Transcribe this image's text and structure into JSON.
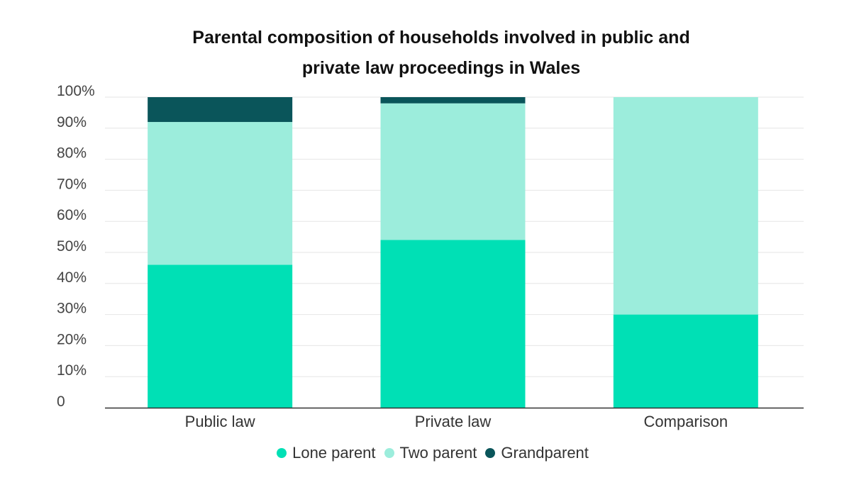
{
  "chart_data": {
    "type": "bar",
    "stacked": true,
    "title_lines": [
      "Parental composition of households involved in public and",
      "private law proceedings in Wales"
    ],
    "categories": [
      "Public law",
      "Private law",
      "Comparison"
    ],
    "series": [
      {
        "name": "Lone parent",
        "values": [
          46,
          54,
          30
        ],
        "color": "#00e0b5"
      },
      {
        "name": "Two parent",
        "values": [
          46,
          44,
          70
        ],
        "color": "#9ceddc"
      },
      {
        "name": "Grandparent",
        "values": [
          8,
          2,
          0
        ],
        "color": "#0a555a"
      }
    ],
    "y_ticks": [
      "0",
      "10%",
      "20%",
      "30%",
      "40%",
      "50%",
      "60%",
      "70%",
      "80%",
      "90%",
      "100%"
    ],
    "ylim": [
      0,
      100
    ],
    "grid": true,
    "legend_position": "bottom-center"
  }
}
